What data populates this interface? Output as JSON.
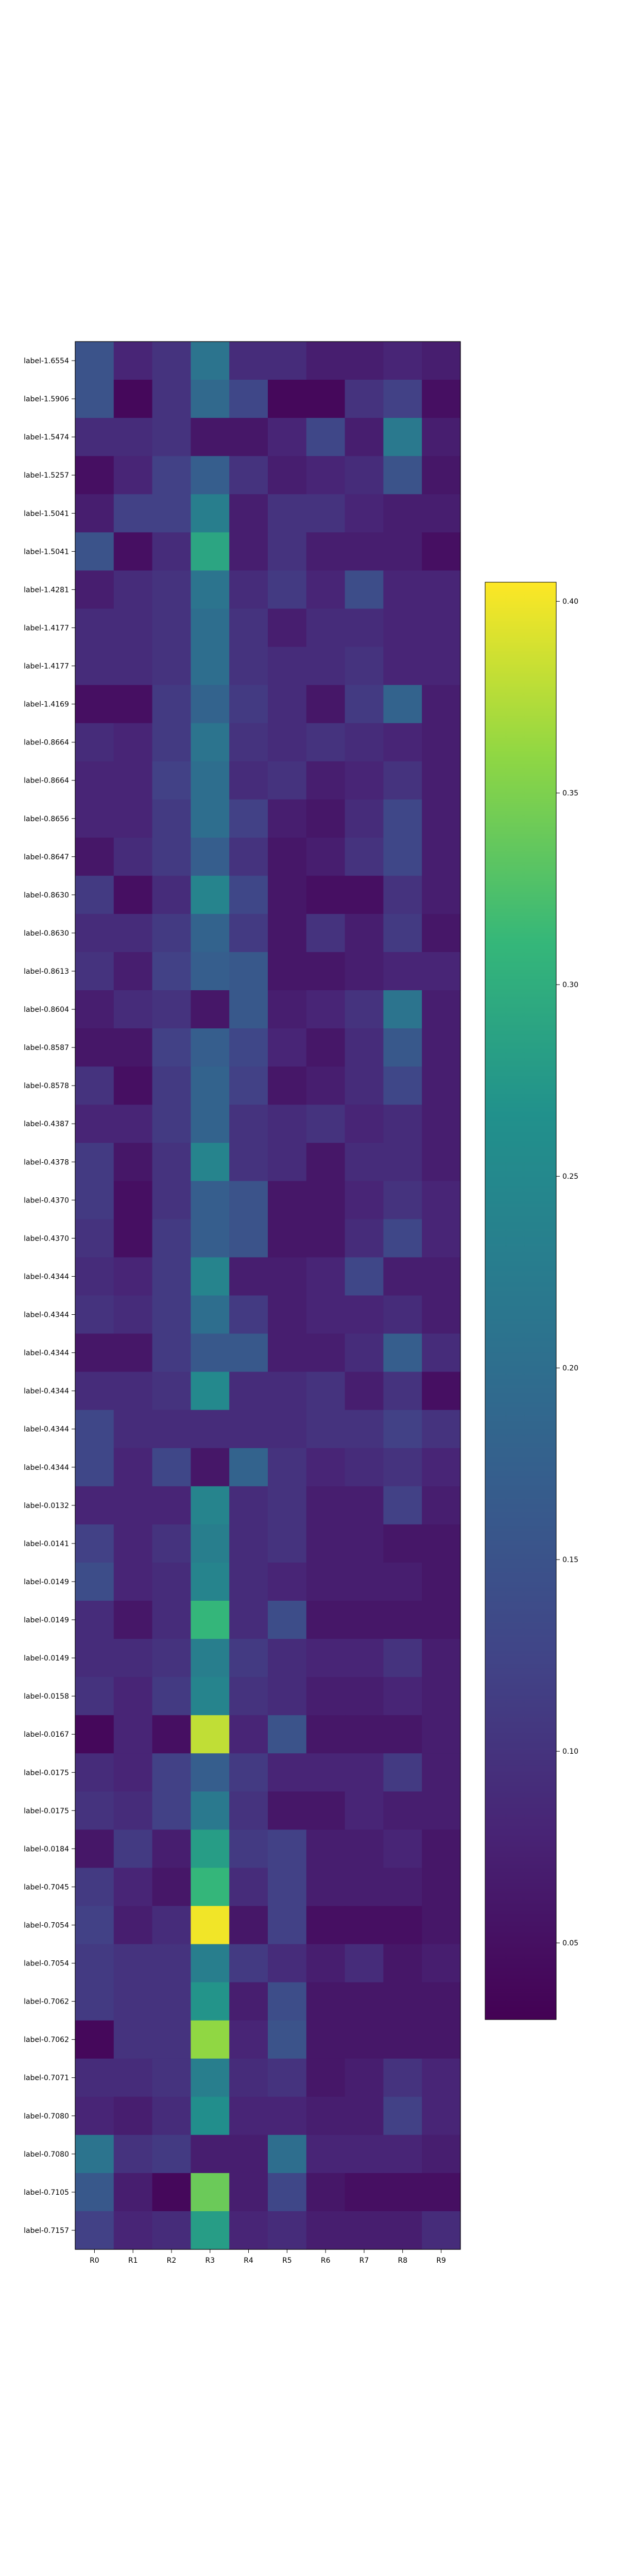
{
  "chart_data": {
    "type": "heatmap",
    "title": "",
    "xlabel": "",
    "ylabel": "",
    "x_labels": [
      "R0",
      "R1",
      "R2",
      "R3",
      "R4",
      "R5",
      "R6",
      "R7",
      "R8",
      "R9"
    ],
    "y_labels": [
      "label-1.6554",
      "label-1.5906",
      "label-1.5474",
      "label-1.5257",
      "label-1.5041",
      "label-1.5041",
      "label-1.4281",
      "label-1.4177",
      "label-1.4177",
      "label-1.4169",
      "label-0.8664",
      "label-0.8664",
      "label-0.8656",
      "label-0.8647",
      "label-0.8630",
      "label-0.8630",
      "label-0.8613",
      "label-0.8604",
      "label-0.8587",
      "label-0.8578",
      "label-0.4387",
      "label-0.4378",
      "label-0.4370",
      "label-0.4370",
      "label-0.4344",
      "label-0.4344",
      "label-0.4344",
      "label-0.4344",
      "label-0.4344",
      "label-0.4344",
      "label-0.0132",
      "label-0.0141",
      "label-0.0149",
      "label-0.0149",
      "label-0.0149",
      "label-0.0158",
      "label-0.0167",
      "label-0.0175",
      "label-0.0175",
      "label-0.0184",
      "label-0.7045",
      "label-0.7054",
      "label-0.7054",
      "label-0.7062",
      "label-0.7062",
      "label-0.7071",
      "label-0.7080",
      "label-0.7080",
      "label-0.7105",
      "label-0.7157"
    ],
    "values": [
      [
        0.15,
        0.08,
        0.1,
        0.21,
        0.09,
        0.09,
        0.07,
        0.07,
        0.08,
        0.07
      ],
      [
        0.15,
        0.04,
        0.1,
        0.19,
        0.13,
        0.04,
        0.04,
        0.1,
        0.12,
        0.05
      ],
      [
        0.09,
        0.09,
        0.1,
        0.06,
        0.06,
        0.08,
        0.13,
        0.07,
        0.22,
        0.07
      ],
      [
        0.05,
        0.08,
        0.12,
        0.17,
        0.1,
        0.07,
        0.08,
        0.09,
        0.15,
        0.06
      ],
      [
        0.07,
        0.12,
        0.12,
        0.23,
        0.07,
        0.1,
        0.1,
        0.08,
        0.07,
        0.07
      ],
      [
        0.15,
        0.05,
        0.09,
        0.29,
        0.07,
        0.1,
        0.07,
        0.07,
        0.07,
        0.05
      ],
      [
        0.07,
        0.09,
        0.1,
        0.21,
        0.09,
        0.11,
        0.08,
        0.14,
        0.08,
        0.08
      ],
      [
        0.09,
        0.09,
        0.1,
        0.2,
        0.1,
        0.07,
        0.09,
        0.09,
        0.08,
        0.08
      ],
      [
        0.09,
        0.09,
        0.1,
        0.2,
        0.1,
        0.09,
        0.09,
        0.1,
        0.08,
        0.08
      ],
      [
        0.05,
        0.05,
        0.11,
        0.18,
        0.11,
        0.09,
        0.06,
        0.11,
        0.18,
        0.07
      ],
      [
        0.09,
        0.08,
        0.11,
        0.21,
        0.1,
        0.09,
        0.1,
        0.09,
        0.08,
        0.07
      ],
      [
        0.08,
        0.08,
        0.12,
        0.2,
        0.09,
        0.1,
        0.07,
        0.08,
        0.1,
        0.07
      ],
      [
        0.08,
        0.08,
        0.11,
        0.2,
        0.12,
        0.07,
        0.06,
        0.09,
        0.13,
        0.07
      ],
      [
        0.06,
        0.09,
        0.11,
        0.17,
        0.1,
        0.06,
        0.07,
        0.1,
        0.13,
        0.07
      ],
      [
        0.11,
        0.05,
        0.09,
        0.24,
        0.13,
        0.06,
        0.05,
        0.05,
        0.1,
        0.07
      ],
      [
        0.09,
        0.09,
        0.11,
        0.18,
        0.11,
        0.06,
        0.1,
        0.07,
        0.11,
        0.06
      ],
      [
        0.1,
        0.07,
        0.12,
        0.17,
        0.16,
        0.06,
        0.06,
        0.07,
        0.08,
        0.08
      ],
      [
        0.07,
        0.09,
        0.1,
        0.06,
        0.16,
        0.07,
        0.08,
        0.1,
        0.21,
        0.07
      ],
      [
        0.06,
        0.06,
        0.12,
        0.17,
        0.13,
        0.08,
        0.06,
        0.09,
        0.16,
        0.07
      ],
      [
        0.1,
        0.05,
        0.11,
        0.18,
        0.12,
        0.06,
        0.07,
        0.09,
        0.13,
        0.07
      ],
      [
        0.08,
        0.08,
        0.11,
        0.18,
        0.1,
        0.09,
        0.1,
        0.08,
        0.09,
        0.07
      ],
      [
        0.11,
        0.06,
        0.1,
        0.24,
        0.1,
        0.09,
        0.06,
        0.09,
        0.09,
        0.07
      ],
      [
        0.11,
        0.05,
        0.1,
        0.17,
        0.15,
        0.06,
        0.06,
        0.08,
        0.1,
        0.08
      ],
      [
        0.1,
        0.05,
        0.11,
        0.17,
        0.15,
        0.06,
        0.06,
        0.09,
        0.13,
        0.08
      ],
      [
        0.09,
        0.08,
        0.11,
        0.24,
        0.07,
        0.07,
        0.08,
        0.13,
        0.07,
        0.07
      ],
      [
        0.1,
        0.09,
        0.11,
        0.2,
        0.11,
        0.07,
        0.08,
        0.08,
        0.09,
        0.07
      ],
      [
        0.06,
        0.06,
        0.11,
        0.16,
        0.16,
        0.07,
        0.07,
        0.09,
        0.17,
        0.09
      ],
      [
        0.09,
        0.09,
        0.1,
        0.25,
        0.09,
        0.09,
        0.1,
        0.07,
        0.1,
        0.05
      ],
      [
        0.13,
        0.09,
        0.09,
        0.09,
        0.09,
        0.09,
        0.1,
        0.1,
        0.12,
        0.1
      ],
      [
        0.13,
        0.08,
        0.13,
        0.06,
        0.18,
        0.1,
        0.08,
        0.09,
        0.1,
        0.08
      ],
      [
        0.08,
        0.08,
        0.08,
        0.24,
        0.09,
        0.1,
        0.07,
        0.07,
        0.12,
        0.07
      ],
      [
        0.12,
        0.08,
        0.1,
        0.23,
        0.09,
        0.1,
        0.07,
        0.07,
        0.06,
        0.06
      ],
      [
        0.14,
        0.08,
        0.09,
        0.24,
        0.09,
        0.08,
        0.07,
        0.07,
        0.07,
        0.06
      ],
      [
        0.09,
        0.06,
        0.09,
        0.31,
        0.09,
        0.14,
        0.06,
        0.06,
        0.06,
        0.06
      ],
      [
        0.09,
        0.09,
        0.1,
        0.23,
        0.11,
        0.09,
        0.08,
        0.08,
        0.1,
        0.07
      ],
      [
        0.1,
        0.08,
        0.11,
        0.24,
        0.1,
        0.09,
        0.07,
        0.07,
        0.08,
        0.07
      ],
      [
        0.04,
        0.08,
        0.05,
        0.38,
        0.08,
        0.15,
        0.06,
        0.06,
        0.06,
        0.07
      ],
      [
        0.09,
        0.08,
        0.12,
        0.17,
        0.11,
        0.08,
        0.08,
        0.08,
        0.11,
        0.07
      ],
      [
        0.1,
        0.09,
        0.12,
        0.22,
        0.1,
        0.06,
        0.06,
        0.08,
        0.07,
        0.07
      ],
      [
        0.06,
        0.11,
        0.07,
        0.28,
        0.11,
        0.12,
        0.07,
        0.07,
        0.08,
        0.06
      ],
      [
        0.11,
        0.08,
        0.06,
        0.31,
        0.09,
        0.12,
        0.07,
        0.07,
        0.07,
        0.06
      ],
      [
        0.12,
        0.07,
        0.09,
        0.4,
        0.06,
        0.12,
        0.05,
        0.05,
        0.05,
        0.06
      ],
      [
        0.11,
        0.1,
        0.1,
        0.23,
        0.11,
        0.09,
        0.07,
        0.09,
        0.06,
        0.07
      ],
      [
        0.11,
        0.1,
        0.1,
        0.27,
        0.07,
        0.14,
        0.06,
        0.06,
        0.06,
        0.06
      ],
      [
        0.04,
        0.1,
        0.1,
        0.36,
        0.08,
        0.15,
        0.06,
        0.06,
        0.06,
        0.06
      ],
      [
        0.09,
        0.09,
        0.1,
        0.23,
        0.09,
        0.1,
        0.06,
        0.07,
        0.1,
        0.08
      ],
      [
        0.08,
        0.07,
        0.09,
        0.26,
        0.08,
        0.08,
        0.07,
        0.07,
        0.12,
        0.08
      ],
      [
        0.21,
        0.1,
        0.11,
        0.07,
        0.07,
        0.2,
        0.08,
        0.08,
        0.08,
        0.07
      ],
      [
        0.16,
        0.07,
        0.04,
        0.34,
        0.07,
        0.13,
        0.06,
        0.05,
        0.05,
        0.05
      ],
      [
        0.12,
        0.08,
        0.09,
        0.28,
        0.08,
        0.09,
        0.07,
        0.07,
        0.07,
        0.09
      ]
    ],
    "vmin": 0.03,
    "vmax": 0.405,
    "colorbar_ticks": [
      0.05,
      0.1,
      0.15,
      0.2,
      0.25,
      0.3,
      0.35,
      0.4
    ],
    "colormap": "viridis",
    "grid": false
  }
}
